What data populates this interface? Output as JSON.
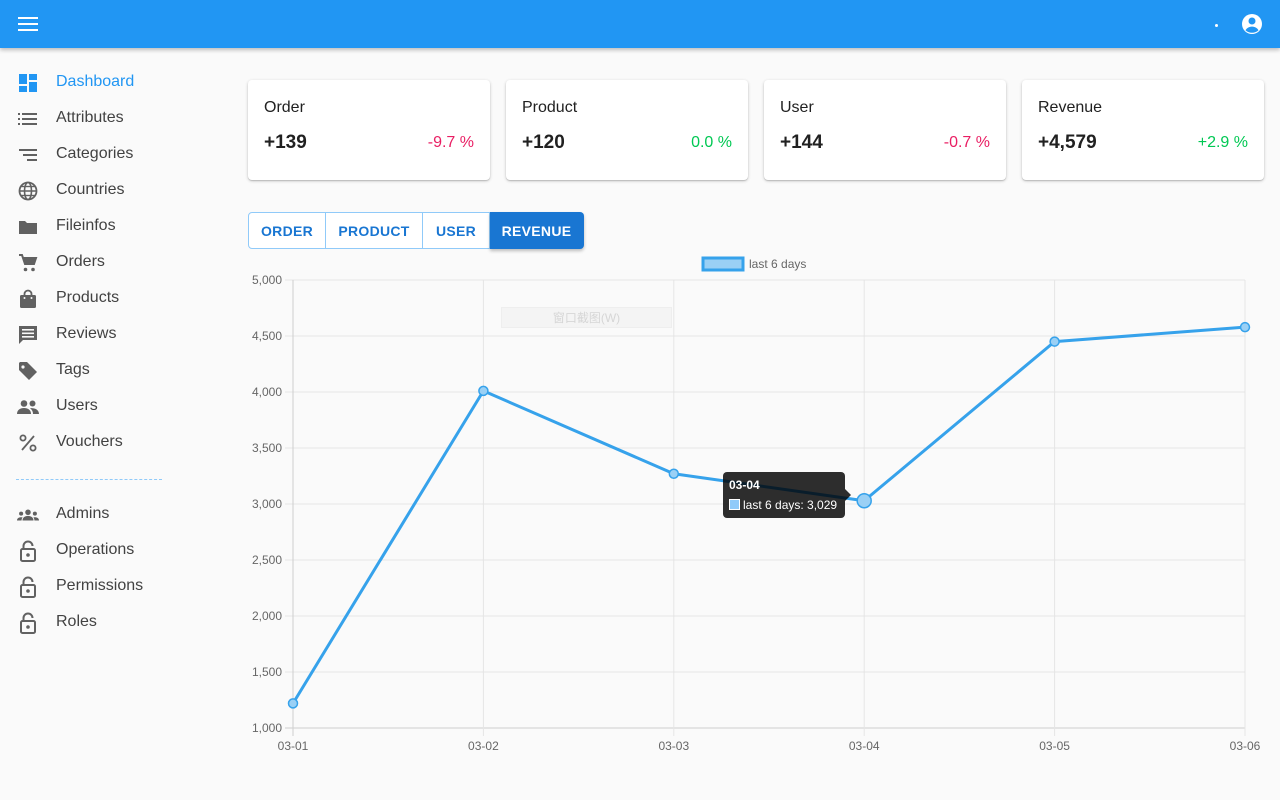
{
  "appbar": {
    "menu_icon": "menu-icon",
    "account_icon": "account-circle-icon"
  },
  "sidebar": {
    "items": [
      {
        "label": "Dashboard",
        "icon": "dashboard-icon",
        "active": true
      },
      {
        "label": "Attributes",
        "icon": "list-icon"
      },
      {
        "label": "Categories",
        "icon": "sort-icon"
      },
      {
        "label": "Countries",
        "icon": "globe-icon"
      },
      {
        "label": "Fileinfos",
        "icon": "folder-icon"
      },
      {
        "label": "Orders",
        "icon": "cart-icon"
      },
      {
        "label": "Products",
        "icon": "shopping-bag-icon"
      },
      {
        "label": "Reviews",
        "icon": "comment-icon"
      },
      {
        "label": "Tags",
        "icon": "tag-icon"
      },
      {
        "label": "Users",
        "icon": "people-icon"
      },
      {
        "label": "Vouchers",
        "icon": "percent-icon"
      }
    ],
    "admin_items": [
      {
        "label": "Admins",
        "icon": "groups-icon"
      },
      {
        "label": "Operations",
        "icon": "lock-open-icon"
      },
      {
        "label": "Permissions",
        "icon": "lock-open-icon"
      },
      {
        "label": "Roles",
        "icon": "lock-open-icon"
      }
    ]
  },
  "cards": [
    {
      "title": "Order",
      "value": "+139",
      "delta": "-9.7 %",
      "color": "#e91e63"
    },
    {
      "title": "Product",
      "value": "+120",
      "delta": "0.0 %",
      "color": "#00c853"
    },
    {
      "title": "User",
      "value": "+144",
      "delta": "-0.7 %",
      "color": "#e91e63"
    },
    {
      "title": "Revenue",
      "value": "+4,579",
      "delta": "+2.9 %",
      "color": "#00c853"
    }
  ],
  "tabs": [
    {
      "label": "ORDER"
    },
    {
      "label": "PRODUCT"
    },
    {
      "label": "USER"
    },
    {
      "label": "REVENUE",
      "active": true
    }
  ],
  "chart_data": {
    "type": "line",
    "title": "",
    "xlabel": "",
    "ylabel": "",
    "categories": [
      "03-01",
      "03-02",
      "03-03",
      "03-04",
      "03-05",
      "03-06"
    ],
    "series": [
      {
        "name": "last 6 days",
        "values": [
          1220,
          4010,
          3270,
          3029,
          4450,
          4579
        ]
      }
    ],
    "ylim": [
      1000,
      5000
    ],
    "yticks": [
      "1,000",
      "1,500",
      "2,000",
      "2,500",
      "3,000",
      "3,500",
      "4,000",
      "4,500",
      "5,000"
    ],
    "grid": true,
    "legend": "top-center",
    "line_color": "#36a2eb",
    "point_fill": "#9ad0f5"
  },
  "tooltip": {
    "title": "03-04",
    "text": "last 6 days: 3,029"
  },
  "ghost_label": "窗口截图(W)"
}
